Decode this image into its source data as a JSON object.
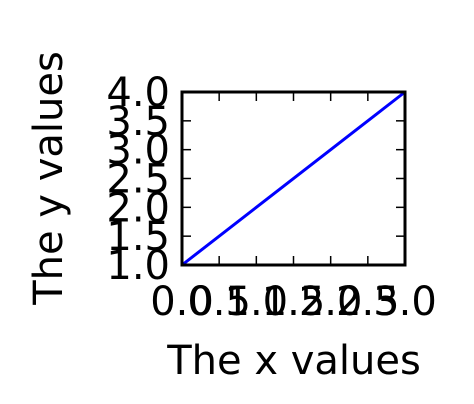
{
  "chart_data": {
    "type": "line",
    "xlabel": "The x values",
    "ylabel": "The y values",
    "xlim": [
      0.0,
      3.0
    ],
    "ylim": [
      1.0,
      4.0
    ],
    "xticks": [
      "0.0",
      "0.5",
      "1.0",
      "1.5",
      "2.0",
      "2.5",
      "3.0"
    ],
    "yticks": [
      "1.0",
      "1.5",
      "2.0",
      "2.5",
      "3.0",
      "3.5",
      "4.0"
    ],
    "series": [
      {
        "x": [
          0.0,
          1.0,
          2.0,
          3.0
        ],
        "y": [
          1.0,
          2.0,
          3.0,
          4.0
        ],
        "color": "#0000ff"
      }
    ],
    "grid": false
  }
}
